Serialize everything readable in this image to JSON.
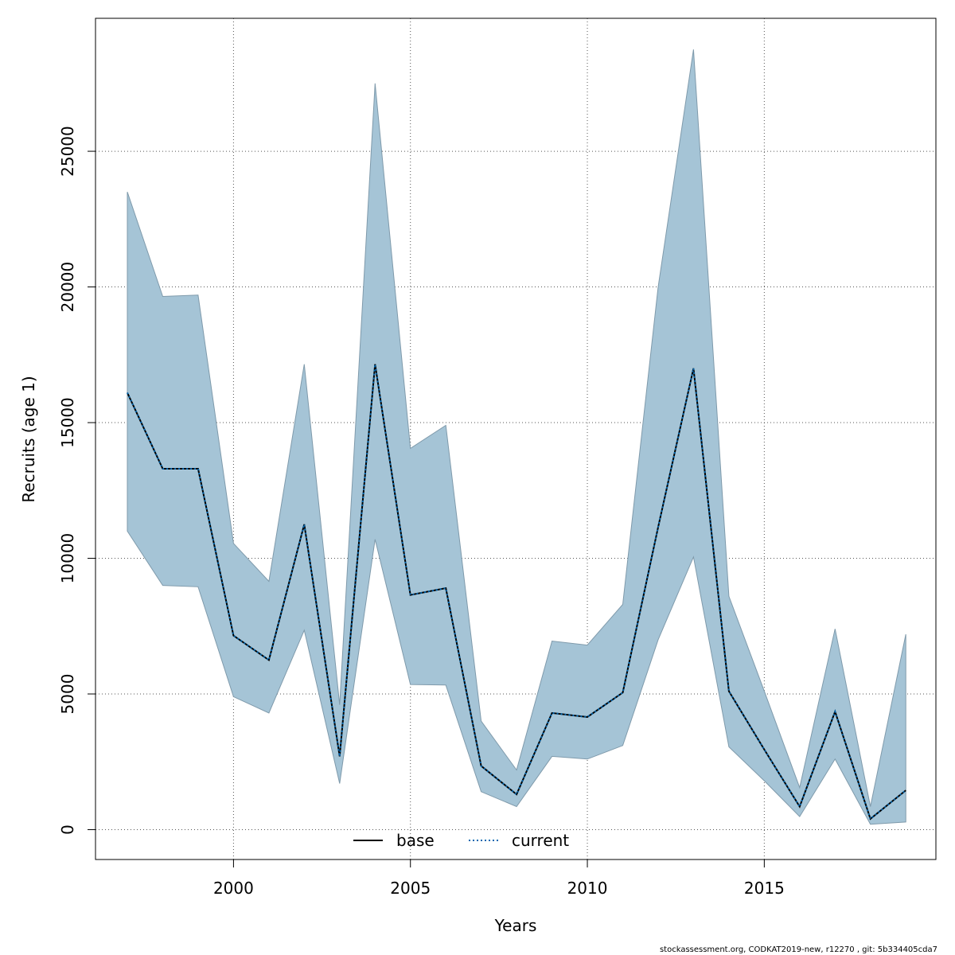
{
  "chart_data": {
    "type": "area",
    "xlabel": "Years",
    "ylabel": "Recruits (age 1)",
    "xlim": [
      1996.1,
      2019.85
    ],
    "ylim": [
      -1100,
      29900
    ],
    "xticks": [
      2000,
      2005,
      2010,
      2015
    ],
    "yticks": [
      0,
      5000,
      10000,
      15000,
      20000,
      25000
    ],
    "grid": true,
    "legend_position": "bottom-center",
    "x": [
      1997,
      1998,
      1999,
      2000,
      2001,
      2002,
      2003,
      2004,
      2005,
      2006,
      2007,
      2008,
      2009,
      2010,
      2011,
      2012,
      2013,
      2014,
      2015,
      2016,
      2017,
      2018,
      2019
    ],
    "band": {
      "lower": [
        11000,
        9000,
        8950,
        4900,
        4300,
        7350,
        1700,
        10700,
        5350,
        5330,
        1400,
        850,
        2700,
        2600,
        3100,
        7000,
        10050,
        3050,
        1800,
        480,
        2600,
        200,
        280
      ],
      "upper": [
        23500,
        19650,
        19700,
        10550,
        9150,
        17150,
        4600,
        27500,
        14050,
        14900,
        4000,
        2200,
        6950,
        6800,
        8300,
        20000,
        28750,
        8600,
        5100,
        1550,
        7400,
        850,
        7200
      ]
    },
    "series": [
      {
        "name": "base",
        "style": "solid",
        "color": "#000000",
        "values": [
          16100,
          13300,
          13300,
          7150,
          6250,
          11250,
          2700,
          17150,
          8650,
          8900,
          2350,
          1300,
          4300,
          4150,
          5050,
          11150,
          17000,
          5100,
          2950,
          850,
          4350,
          400,
          1450
        ]
      },
      {
        "name": "current",
        "style": "dotted",
        "color": "#0067b0",
        "values": [
          16100,
          13300,
          13300,
          7150,
          6250,
          11250,
          2700,
          17150,
          8650,
          8900,
          2350,
          1300,
          4300,
          4150,
          5050,
          11150,
          17000,
          5100,
          2950,
          850,
          4350,
          400,
          1450
        ]
      }
    ],
    "colors": {
      "band_fill": "#a5c4d6",
      "band_stroke": "#7f9aab",
      "grid": "#555555"
    }
  },
  "footer": "stockassessment.org, CODKAT2019-new, r12270 , git: 5b334405cda7"
}
